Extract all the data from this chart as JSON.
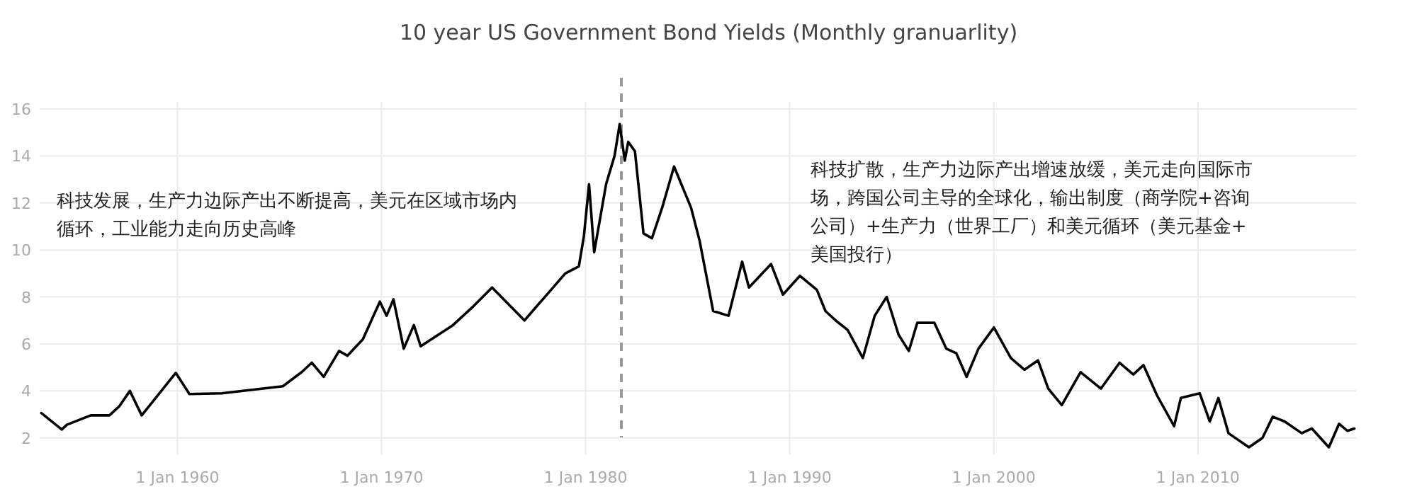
{
  "chart_data": {
    "type": "line",
    "title": "10 year US Government Bond Yields (Monthly granuarlity)",
    "x": [
      "1953-05",
      "1954-05",
      "1954-08",
      "1955-10",
      "1956-09",
      "1957-03",
      "1957-09",
      "1958-04",
      "1959-12",
      "1960-08",
      "1962-03",
      "1965-03",
      "1966-02",
      "1966-08",
      "1967-03",
      "1967-12",
      "1968-05",
      "1969-02",
      "1969-12",
      "1970-04",
      "1970-08",
      "1971-02",
      "1971-08",
      "1971-12",
      "1973-07",
      "1974-07",
      "1975-06",
      "1977-01",
      "1978-01",
      "1979-01",
      "1979-09",
      "1979-12",
      "1980-03",
      "1980-06",
      "1981-01",
      "1981-06",
      "1981-09",
      "1981-12",
      "1982-02",
      "1982-06",
      "1982-11",
      "1983-04",
      "1983-10",
      "1984-05",
      "1985-03",
      "1985-08",
      "1986-04",
      "1987-01",
      "1987-09",
      "1988-01",
      "1989-02",
      "1989-09",
      "1990-07",
      "1991-05",
      "1991-10",
      "1992-04",
      "1992-11",
      "1993-08",
      "1994-03",
      "1994-10",
      "1995-05",
      "1995-11",
      "1996-04",
      "1997-02",
      "1997-09",
      "1998-03",
      "1998-09",
      "1999-04",
      "2000-01",
      "2000-11",
      "2001-07",
      "2002-03",
      "2002-09",
      "2003-05",
      "2004-04",
      "2005-04",
      "2006-03",
      "2006-11",
      "2007-05",
      "2008-01",
      "2008-11",
      "2009-03",
      "2010-02",
      "2010-08",
      "2011-01",
      "2011-07",
      "2012-07",
      "2013-03",
      "2013-09",
      "2014-04",
      "2015-02",
      "2015-08",
      "2016-06",
      "2016-12",
      "2017-05",
      "2017-09"
    ],
    "series": [
      {
        "color": "#000000",
        "values": [
          3.06,
          2.36,
          2.56,
          2.96,
          2.96,
          3.36,
          4.0,
          2.96,
          4.77,
          3.87,
          3.9,
          4.2,
          4.8,
          5.2,
          4.6,
          5.7,
          5.5,
          6.2,
          7.8,
          7.2,
          7.9,
          5.8,
          6.8,
          5.9,
          6.8,
          7.6,
          8.4,
          7.0,
          8.0,
          9.0,
          9.3,
          10.6,
          12.8,
          9.9,
          12.8,
          14.0,
          15.36,
          13.8,
          14.6,
          14.2,
          10.7,
          10.5,
          11.8,
          13.55,
          11.8,
          10.4,
          7.4,
          7.2,
          9.5,
          8.4,
          9.4,
          8.1,
          8.9,
          8.3,
          7.4,
          7.0,
          6.6,
          5.4,
          7.2,
          8.0,
          6.4,
          5.7,
          6.9,
          6.9,
          5.8,
          5.6,
          4.6,
          5.8,
          6.7,
          5.4,
          4.9,
          5.3,
          4.1,
          3.4,
          4.8,
          4.1,
          5.2,
          4.7,
          5.1,
          3.8,
          2.5,
          3.7,
          3.9,
          2.7,
          3.7,
          2.2,
          1.6,
          2.0,
          2.9,
          2.7,
          2.2,
          2.4,
          1.6,
          2.6,
          2.3,
          2.4
        ]
      }
    ],
    "xlim": [
      "1953-04",
      "2017-10"
    ],
    "xticks": [
      {
        "value": "1960-01-01",
        "label": "1 Jan 1960"
      },
      {
        "value": "1970-01-01",
        "label": "1 Jan 1970"
      },
      {
        "value": "1980-01-01",
        "label": "1 Jan 1980"
      },
      {
        "value": "1990-01-01",
        "label": "1 Jan 1990"
      },
      {
        "value": "2000-01-01",
        "label": "1 Jan 2000"
      },
      {
        "value": "2010-01-01",
        "label": "1 Jan 2010"
      }
    ],
    "ylim": [
      1.3,
      16.3
    ],
    "yticks": [
      2,
      4,
      6,
      8,
      10,
      12,
      14,
      16
    ],
    "grid": true,
    "marker": "none",
    "line_style": "solid",
    "ref_lines": [
      {
        "axis": "x",
        "value": "1981-10",
        "color": "#999999",
        "line_style": "dashed"
      }
    ],
    "annotations": [
      "科技发展，生产力边际产出不断提高，美元在区域市场内循环，工业能力走向历史高峰",
      "科技扩散，生产力边际产出增速放缓，美元走向国际市场，跨国公司主导的全球化，输出制度（商学院+咨询公司）+生产力（世界工厂）和美元循环（美元基金+美国投行）"
    ]
  }
}
